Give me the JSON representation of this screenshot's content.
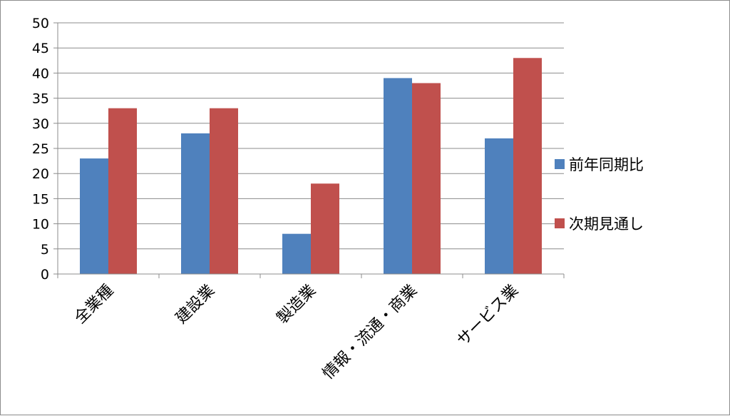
{
  "chart_data": {
    "type": "bar",
    "categories": [
      "全業種",
      "建設業",
      "製造業",
      "情報・流通・商業",
      "サービス業"
    ],
    "series": [
      {
        "name": "前年同期比",
        "values": [
          23,
          28,
          8,
          39,
          27
        ],
        "color": "#4f81bd"
      },
      {
        "name": "次期見通し",
        "values": [
          33,
          33,
          18,
          38,
          43
        ],
        "color": "#c0504d"
      }
    ],
    "ylim": [
      0,
      50
    ],
    "yticks": [
      0,
      5,
      10,
      15,
      20,
      25,
      30,
      35,
      40,
      45,
      50
    ],
    "grid": true,
    "legend_position": "right",
    "title": "",
    "xlabel": "",
    "ylabel": ""
  }
}
